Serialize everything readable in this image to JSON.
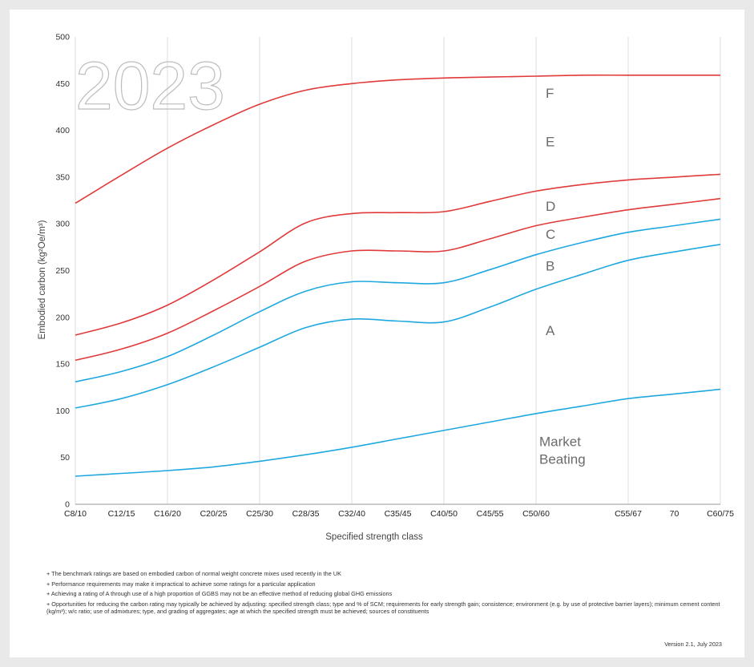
{
  "chart_data": {
    "type": "line",
    "watermark": "2023",
    "xlabel": "Specified strength class",
    "ylabel": "Embodied carbon (kg²Oe/m³)",
    "ylim": [
      0,
      500
    ],
    "yticks": [
      0,
      50,
      100,
      150,
      200,
      250,
      300,
      350,
      400,
      450,
      500
    ],
    "categories": [
      "C8/10",
      "C12/15",
      "C16/20",
      "C20/25",
      "C25/30",
      "C28/35",
      "C32/40",
      "C35/45",
      "C40/50",
      "C45/55",
      "C50/60",
      "",
      "C55/67",
      "70",
      "C60/75"
    ],
    "grid": "vertical",
    "series": [
      {
        "color": "#e03a3a",
        "values": [
          322,
          352,
          381,
          406,
          428,
          443,
          450,
          454,
          456,
          457,
          458,
          459,
          459,
          459,
          459
        ]
      },
      {
        "color": "#e03a3a",
        "values": [
          181,
          194,
          213,
          240,
          270,
          301,
          311,
          312,
          313,
          324,
          335,
          342,
          347,
          350,
          353
        ]
      },
      {
        "color": "#e03a3a",
        "values": [
          154,
          166,
          183,
          207,
          233,
          260,
          271,
          271,
          271,
          284,
          298,
          307,
          315,
          321,
          327
        ]
      },
      {
        "color": "#1fa8e0",
        "values": [
          131,
          142,
          158,
          181,
          206,
          228,
          238,
          237,
          237,
          251,
          267,
          280,
          291,
          298,
          305
        ]
      },
      {
        "color": "#1fa8e0",
        "values": [
          103,
          113,
          128,
          147,
          168,
          189,
          198,
          196,
          195,
          211,
          230,
          246,
          261,
          270,
          278
        ]
      },
      {
        "color": "#1fa8e0",
        "values": [
          30,
          33,
          36,
          40,
          46,
          53,
          61,
          70,
          79,
          88,
          97,
          105,
          113,
          118,
          123
        ]
      }
    ],
    "band_labels": [
      {
        "text": "F",
        "y": 440
      },
      {
        "text": "E",
        "y": 388
      },
      {
        "text": "D",
        "y": 319
      },
      {
        "text": "C",
        "y": 289
      },
      {
        "text": "B",
        "y": 255
      },
      {
        "text": "A",
        "y": 186
      }
    ],
    "market_label": [
      "Market",
      "Beating"
    ],
    "market_y": 62
  },
  "notes": [
    "+ The benchmark ratings are based on embodied carbon of normal weight concrete mixes used recently in the UK",
    "+ Performance requirements may make it impractical to achieve some ratings for a particular application",
    "+ Achieving a rating of A through use of a high proportion of GGBS may not be an effective method of reducing global GHG emissions",
    "+ Opportunities for reducing the carbon rating may typically be achieved by adjusting: specified strength class; type and % of SCM; requirements for early strength gain; consistence; environment (e.g. by use of protective barrier layers); minimum cement content (kg/m³); w/c ratio; use of admixtures; type, and grading of aggregates; age at which the specified strength must be achieved; sources of constituents"
  ],
  "version": "Version 2.1, July 2023"
}
